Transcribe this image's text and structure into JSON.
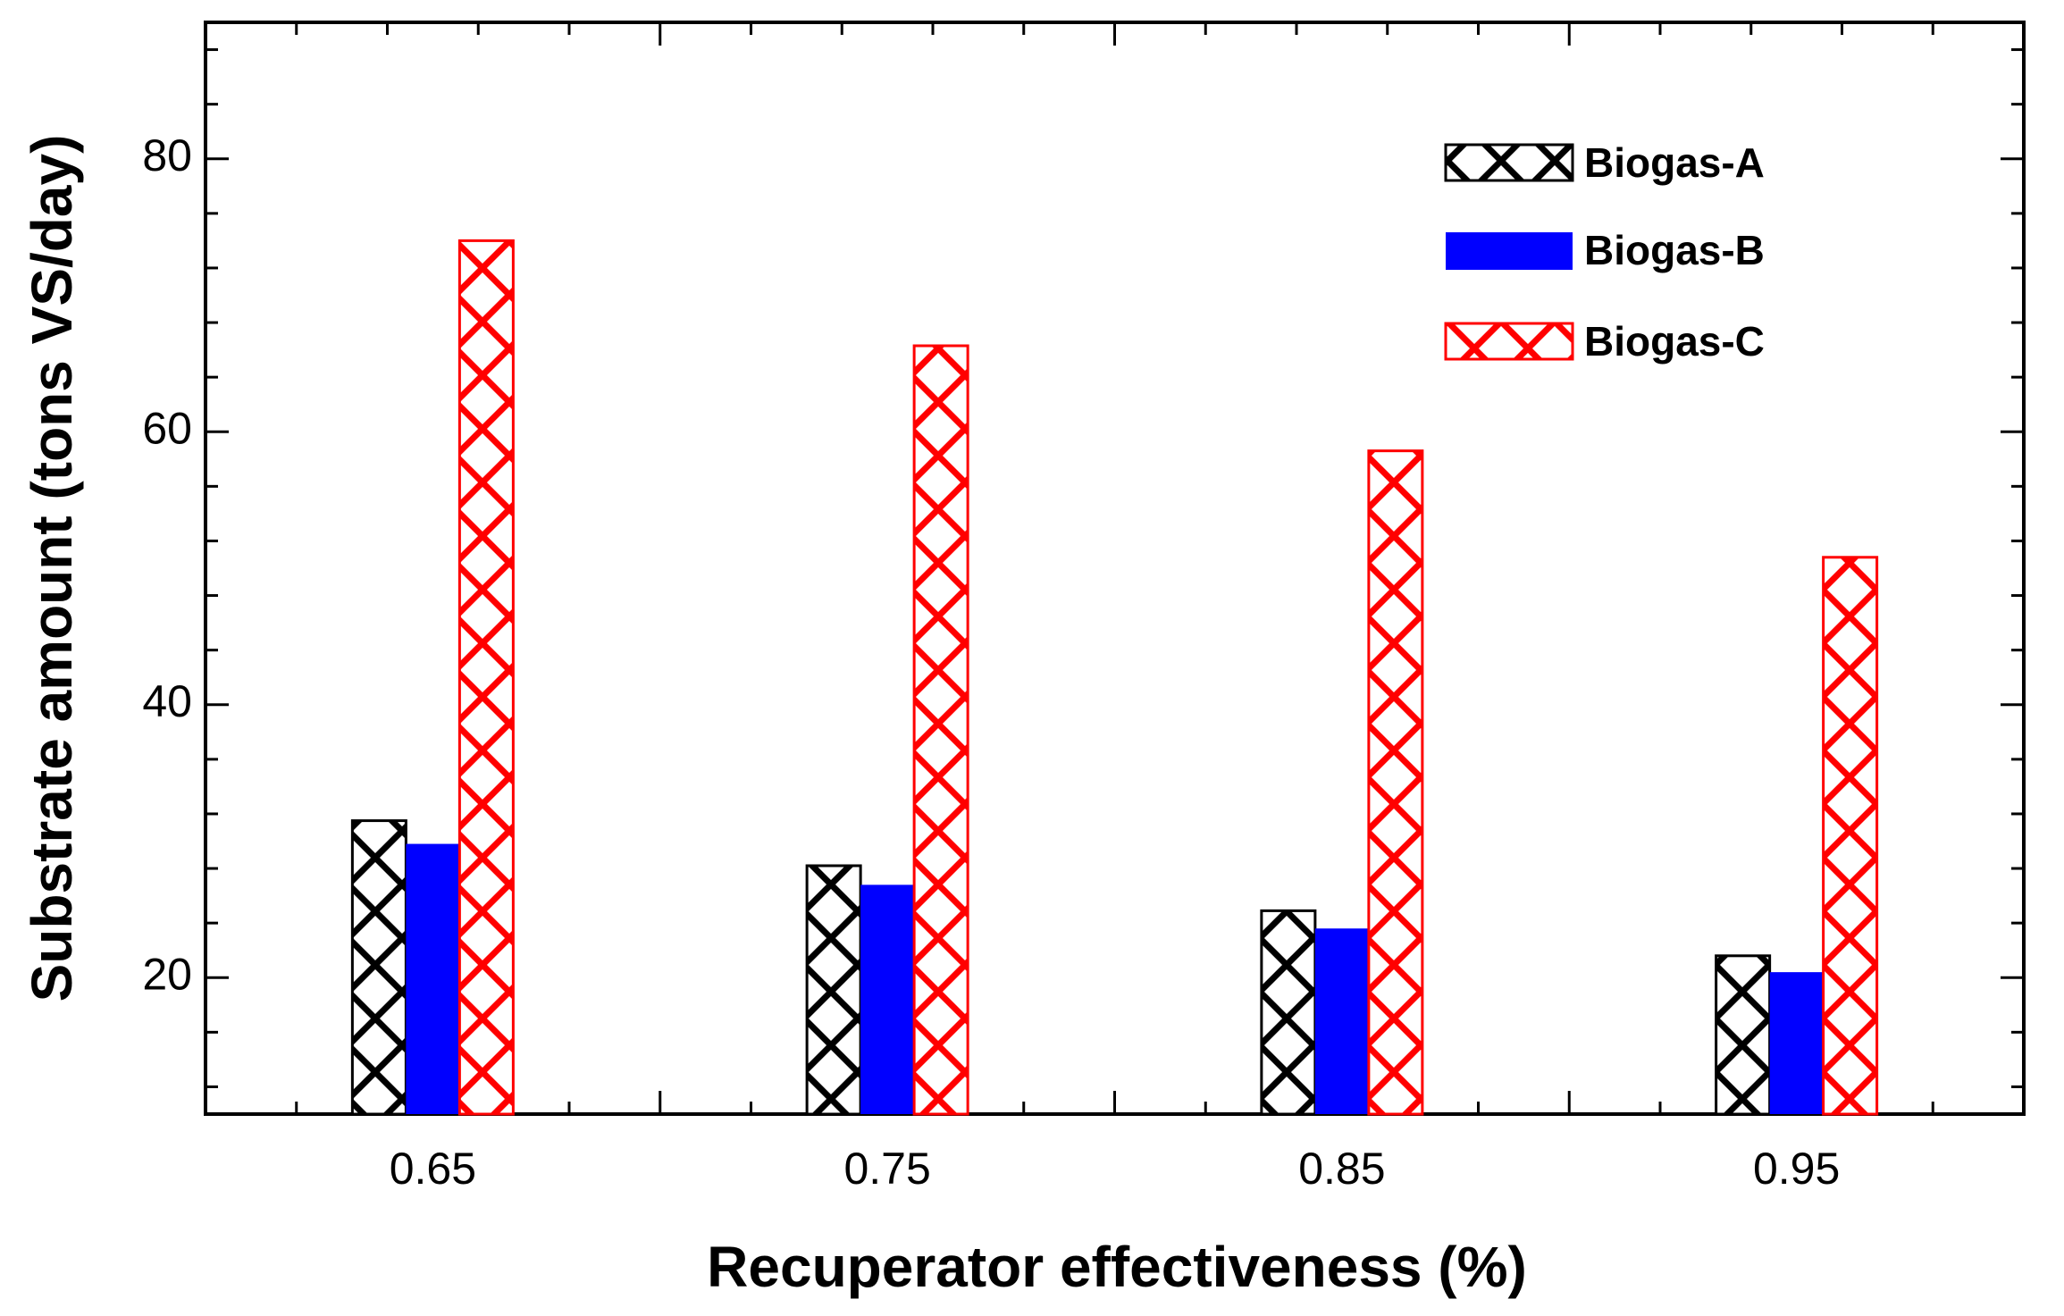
{
  "chart_data": {
    "type": "bar",
    "title": "",
    "xlabel": "Recuperator effectiveness (%)",
    "ylabel": "Substrate amount (tons VS/day)",
    "categories": [
      "0.65",
      "0.75",
      "0.85",
      "0.95"
    ],
    "yticks": [
      20,
      40,
      60,
      80
    ],
    "ylim": [
      10,
      90
    ],
    "grid": false,
    "legend_position": "top-right",
    "series": [
      {
        "name": "Biogas-A",
        "color": "#000000",
        "pattern": "crosshatch",
        "values": [
          31.5,
          28.2,
          24.9,
          21.6
        ]
      },
      {
        "name": "Biogas-B",
        "color": "#0000ff",
        "pattern": "solid",
        "values": [
          29.8,
          26.8,
          23.6,
          20.4
        ]
      },
      {
        "name": "Biogas-C",
        "color": "#ff0000",
        "pattern": "crosshatch",
        "values": [
          74.0,
          66.3,
          58.6,
          50.8
        ]
      }
    ]
  }
}
